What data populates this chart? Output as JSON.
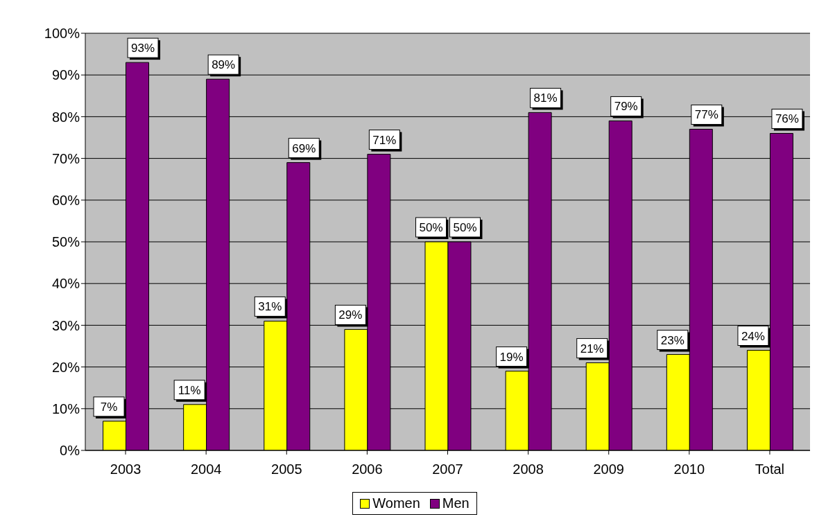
{
  "chart_data": {
    "type": "bar",
    "categories": [
      "2003",
      "2004",
      "2005",
      "2006",
      "2007",
      "2008",
      "2009",
      "2010",
      "Total"
    ],
    "series": [
      {
        "name": "Women",
        "color": "#ffff00",
        "values": [
          7,
          11,
          31,
          29,
          50,
          19,
          21,
          23,
          24
        ],
        "value_labels": [
          "7%",
          "11%",
          "31%",
          "29%",
          "50%",
          "19%",
          "21%",
          "23%",
          "24%"
        ]
      },
      {
        "name": "Men",
        "color": "#800080",
        "values": [
          93,
          89,
          69,
          71,
          50,
          81,
          79,
          77,
          76
        ],
        "value_labels": [
          "93%",
          "89%",
          "69%",
          "71%",
          "50%",
          "81%",
          "79%",
          "77%",
          "76%"
        ]
      }
    ],
    "ylim": [
      0,
      100
    ],
    "yticks": [
      {
        "value": 0,
        "label": "0%"
      },
      {
        "value": 10,
        "label": "10%"
      },
      {
        "value": 20,
        "label": "20%"
      },
      {
        "value": 30,
        "label": "30%"
      },
      {
        "value": 40,
        "label": "40%"
      },
      {
        "value": 50,
        "label": "50%"
      },
      {
        "value": 60,
        "label": "60%"
      },
      {
        "value": 70,
        "label": "70%"
      },
      {
        "value": 80,
        "label": "80%"
      },
      {
        "value": 90,
        "label": "90%"
      },
      {
        "value": 100,
        "label": "100%"
      }
    ],
    "grid": "y",
    "legend": "bottom"
  }
}
